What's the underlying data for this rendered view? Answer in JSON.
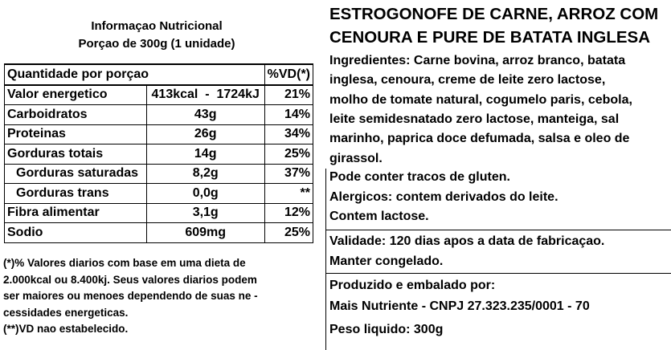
{
  "nutrition": {
    "title": "Informaçao Nutricional",
    "serving": "Porçao de 300g (1 unidade)",
    "header": [
      "Quantidade por porçao",
      "%VD(*)"
    ],
    "rows": [
      [
        "Valor energetico",
        "413kcal  -  1724kJ",
        "21%"
      ],
      [
        "Carboidratos",
        "43g",
        "14%"
      ],
      [
        "Proteinas",
        "26g",
        "34%"
      ],
      [
        "Gorduras totais",
        "14g",
        "25%"
      ],
      [
        "Gorduras saturadas",
        "8,2g",
        "37%"
      ],
      [
        "Gorduras trans",
        "0,0g",
        "**"
      ],
      [
        "Fibra alimentar",
        "3,1g",
        "12%"
      ],
      [
        "Sodio",
        "609mg",
        "25%"
      ]
    ],
    "footnotes": [
      "(*)% Valores diarios com base em uma dieta de",
      "2.000kcal ou 8.400kj. Seus valores diarios podem",
      "ser maiores ou menoes dependendo de suas ne -",
      "cessidades energeticas.",
      "(**)VD nao estabelecido."
    ]
  },
  "product": {
    "title": [
      "ESTROGONOFE DE CARNE, ARROZ COM",
      "CENOURA E PURE DE BATATA INGLESA"
    ],
    "ingredients": [
      "Ingredientes: Carne bovina, arroz branco, batata",
      "inglesa, cenoura, creme de leite zero lactose,",
      "molho de tomate natural, cogumelo paris, cebola,",
      "leite semidesnatado zero lactose, manteiga, sal",
      "marinho, paprica doce defumada, salsa e oleo de",
      "girassol."
    ],
    "warnings": [
      "Pode conter tracos de gluten.",
      "Alergicos: contem derivados do leite.",
      "Contem lactose."
    ],
    "storage": [
      "Validade: 120 dias apos a data de fabricaçao.",
      "Manter congelado."
    ],
    "producer": [
      "Produzido e embalado por:",
      "Mais Nutriente  -  CNPJ 27.323.235/0001 - 70"
    ],
    "weight": "Peso liquido: 300g"
  }
}
